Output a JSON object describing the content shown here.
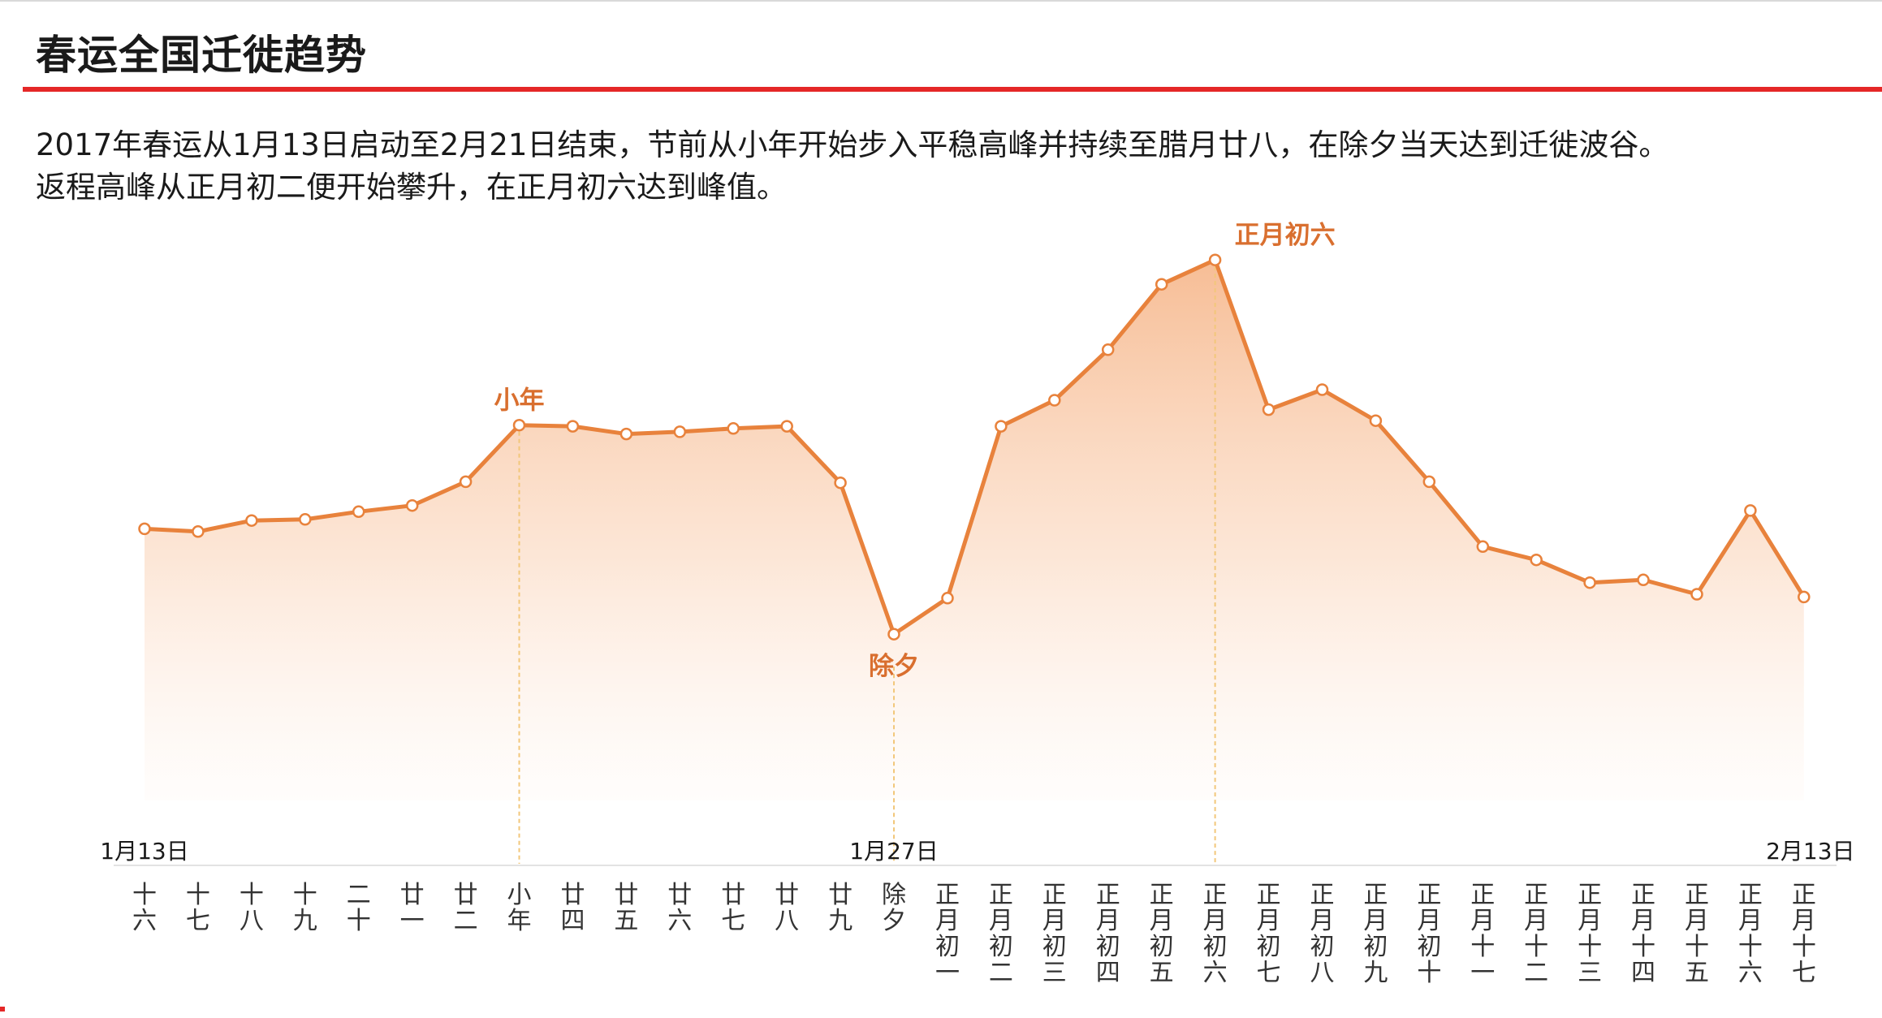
{
  "title": "春运全国迁徙趋势",
  "description": [
    "2017年春运从1月13日启动至2月21日结束，节前从小年开始步入平稳高峰并持续至腊月廿八，在除夕当天达到迁徙波谷。",
    "返程高峰从正月初二便开始攀升，在正月初六达到峰值。"
  ],
  "colors": {
    "accent_red": "#e52727",
    "line": "#e8823c",
    "annotation": "#d96f2f",
    "area_top": "#f4a772",
    "guide": "#f2c77a"
  },
  "chart_data": {
    "type": "area",
    "title": "",
    "xlabel": "",
    "ylabel": "",
    "y_axis_shown": false,
    "grid": false,
    "legend": "none",
    "categories": [
      "十六",
      "十七",
      "十八",
      "十九",
      "二十",
      "廿一",
      "廿二",
      "小年",
      "廿四",
      "廿五",
      "廿六",
      "廿七",
      "廿八",
      "廿九",
      "除夕",
      "正月初一",
      "正月初二",
      "正月初三",
      "正月初四",
      "正月初五",
      "正月初六",
      "正月初七",
      "正月初八",
      "正月初九",
      "正月初十",
      "正月十一",
      "正月十二",
      "正月十三",
      "正月十四",
      "正月十五",
      "正月十六",
      "正月十七"
    ],
    "values": [
      52.5,
      52.0,
      54.0,
      54.2,
      55.6,
      56.7,
      61.0,
      71.2,
      71.0,
      69.6,
      70.0,
      70.6,
      71.0,
      60.8,
      33.5,
      40.0,
      71.0,
      75.7,
      84.8,
      96.6,
      101.0,
      74.0,
      77.6,
      72.0,
      61.0,
      49.3,
      46.9,
      42.8,
      43.3,
      40.7,
      55.8,
      40.2
    ],
    "date_markers": [
      {
        "index": 0,
        "label": "1月13日"
      },
      {
        "index": 14,
        "label": "1月27日"
      },
      {
        "index": 31,
        "label": "2月13日"
      }
    ],
    "annotations": [
      {
        "index": 7,
        "label": "小年",
        "position": "above"
      },
      {
        "index": 14,
        "label": "除夕",
        "position": "below"
      },
      {
        "index": 20,
        "label": "正月初六",
        "position": "above"
      }
    ]
  }
}
